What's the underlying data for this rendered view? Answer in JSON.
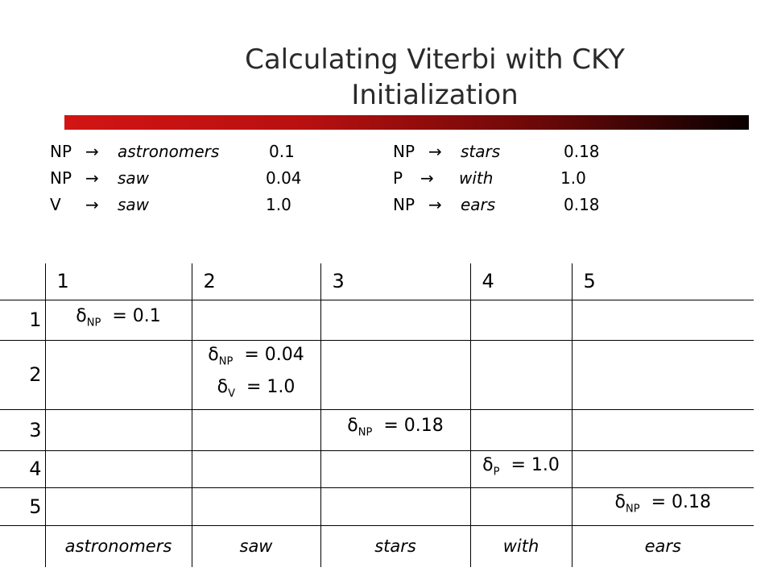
{
  "title": {
    "line1": "Calculating Viterbi with CKY",
    "line2": "Initialization"
  },
  "arrow_glyph": "→",
  "rules_left": [
    {
      "lhs": "NP",
      "word": "astronomers",
      "prob": "0.1"
    },
    {
      "lhs": "NP",
      "word": "saw",
      "prob": "0.04"
    },
    {
      "lhs": "V",
      "word": "saw",
      "prob": "1.0"
    }
  ],
  "rules_right": [
    {
      "lhs": "NP",
      "word": "stars",
      "prob": "0.18"
    },
    {
      "lhs": "P",
      "word": "with",
      "prob": "1.0"
    },
    {
      "lhs": "NP",
      "word": "ears",
      "prob": "0.18"
    }
  ],
  "table": {
    "columns": [
      "1",
      "2",
      "3",
      "4",
      "5"
    ],
    "rows": [
      "1",
      "2",
      "3",
      "4",
      "5"
    ],
    "delta_symbol": "δ",
    "cells": {
      "r1c1": [
        {
          "sym": "NP",
          "value": "= 0.1"
        }
      ],
      "r2c2": [
        {
          "sym": "NP",
          "value": "= 0.04"
        },
        {
          "sym": "V",
          "value": "= 1.0"
        }
      ],
      "r3c3": [
        {
          "sym": "NP",
          "value": "= 0.18"
        }
      ],
      "r4c4": [
        {
          "sym": "P",
          "value": "= 1.0"
        }
      ],
      "r5c5": [
        {
          "sym": "NP",
          "value": "= 0.18"
        }
      ]
    },
    "words": [
      "astronomers",
      "saw",
      "stars",
      "with",
      "ears"
    ]
  }
}
